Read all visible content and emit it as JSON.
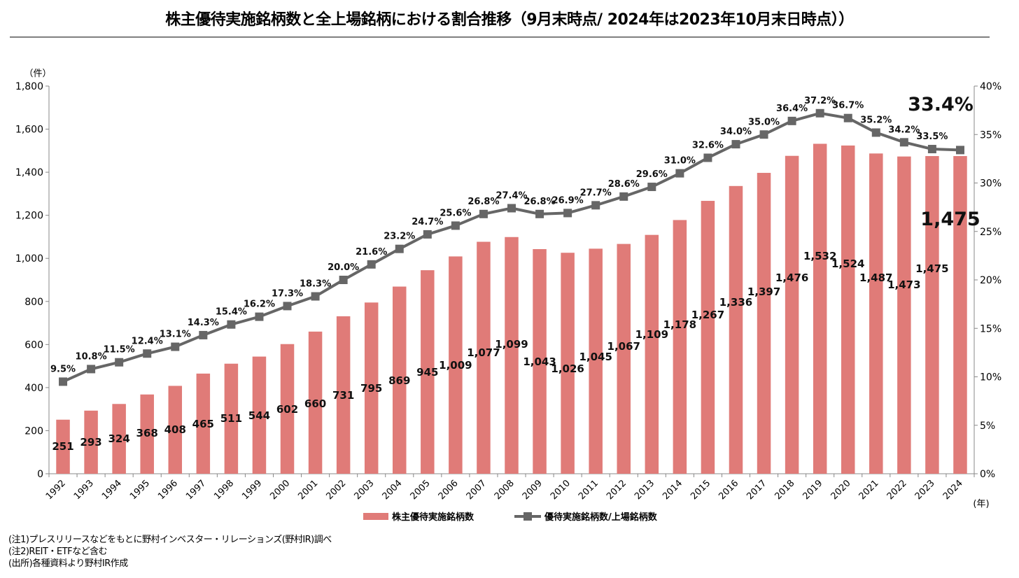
{
  "title": "株主優待実施銘柄数と全上場銘柄における割合推移（9月末時点/ 2024年は2023年10月末日時点））",
  "chart_data": {
    "type": "bar",
    "categories": [
      "1992",
      "1993",
      "1994",
      "1995",
      "1996",
      "1997",
      "1998",
      "1999",
      "2000",
      "2001",
      "2002",
      "2003",
      "2004",
      "2005",
      "2006",
      "2007",
      "2008",
      "2009",
      "2010",
      "2011",
      "2012",
      "2013",
      "2014",
      "2015",
      "2016",
      "2017",
      "2018",
      "2019",
      "2020",
      "2021",
      "2022",
      "2023",
      "2024"
    ],
    "series": [
      {
        "name": "株主優待実施銘柄数",
        "type": "bar",
        "axis": "left",
        "color": "#e07b78",
        "values": [
          251,
          293,
          324,
          368,
          408,
          465,
          511,
          544,
          602,
          660,
          731,
          795,
          869,
          945,
          1009,
          1077,
          1099,
          1043,
          1026,
          1045,
          1067,
          1109,
          1178,
          1267,
          1336,
          1397,
          1476,
          1532,
          1524,
          1487,
          1473,
          1475,
          1475
        ],
        "labels": [
          "251",
          "293",
          "324",
          "368",
          "408",
          "465",
          "511",
          "544",
          "602",
          "660",
          "731",
          "795",
          "869",
          "945",
          "1,009",
          "1,077",
          "1,099",
          "1,043",
          "1,026",
          "1,045",
          "1,067",
          "1,109",
          "1,178",
          "1,267",
          "1,336",
          "1,397",
          "1,476",
          "1,532",
          "1,524",
          "1,487",
          "1,473",
          "1,475",
          ""
        ]
      },
      {
        "name": "優待実施銘柄数/上場銘柄数",
        "type": "line",
        "axis": "right",
        "color": "#666666",
        "values": [
          9.5,
          10.8,
          11.5,
          12.4,
          13.1,
          14.3,
          15.4,
          16.2,
          17.3,
          18.3,
          20.0,
          21.6,
          23.2,
          24.7,
          25.6,
          26.8,
          27.4,
          26.8,
          26.9,
          27.7,
          28.6,
          29.6,
          31.0,
          32.6,
          34.0,
          35.0,
          36.4,
          37.2,
          36.7,
          35.2,
          34.2,
          33.5,
          33.4
        ],
        "labels": [
          "9.5%",
          "10.8%",
          "11.5%",
          "12.4%",
          "13.1%",
          "14.3%",
          "15.4%",
          "16.2%",
          "17.3%",
          "18.3%",
          "20.0%",
          "21.6%",
          "23.2%",
          "24.7%",
          "25.6%",
          "26.8%",
          "27.4%",
          "26.8%",
          "26.9%",
          "27.7%",
          "28.6%",
          "29.6%",
          "31.0%",
          "32.6%",
          "34.0%",
          "35.0%",
          "36.4%",
          "37.2%",
          "36.7%",
          "35.2%",
          "34.2%",
          "33.5%",
          ""
        ]
      }
    ],
    "y_left": {
      "unit_label": "（件）",
      "ylim": [
        0,
        1800
      ],
      "ticks": [
        0,
        200,
        400,
        600,
        800,
        1000,
        1200,
        1400,
        1600,
        1800
      ],
      "tick_labels": [
        "0",
        "200",
        "400",
        "600",
        "800",
        "1,000",
        "1,200",
        "1,400",
        "1,600",
        "1,800"
      ]
    },
    "y_right": {
      "ylim": [
        0,
        40
      ],
      "ticks": [
        0,
        5,
        10,
        15,
        20,
        25,
        30,
        35,
        40
      ],
      "tick_labels": [
        "0%",
        "5%",
        "10%",
        "15%",
        "20%",
        "25%",
        "30%",
        "35%",
        "40%"
      ]
    },
    "x_unit_label": "(年)",
    "highlights": {
      "ratio_2024": "33.4%",
      "count_2024": "1,475"
    },
    "legend_position": "bottom-center",
    "grid": false
  },
  "notes": [
    "(注1)プレスリリースなどをもとに野村インベスター・リレーションズ(野村IR)調べ",
    "(注2)REIT・ETFなど含む",
    "(出所)各種資料より野村IR作成"
  ]
}
